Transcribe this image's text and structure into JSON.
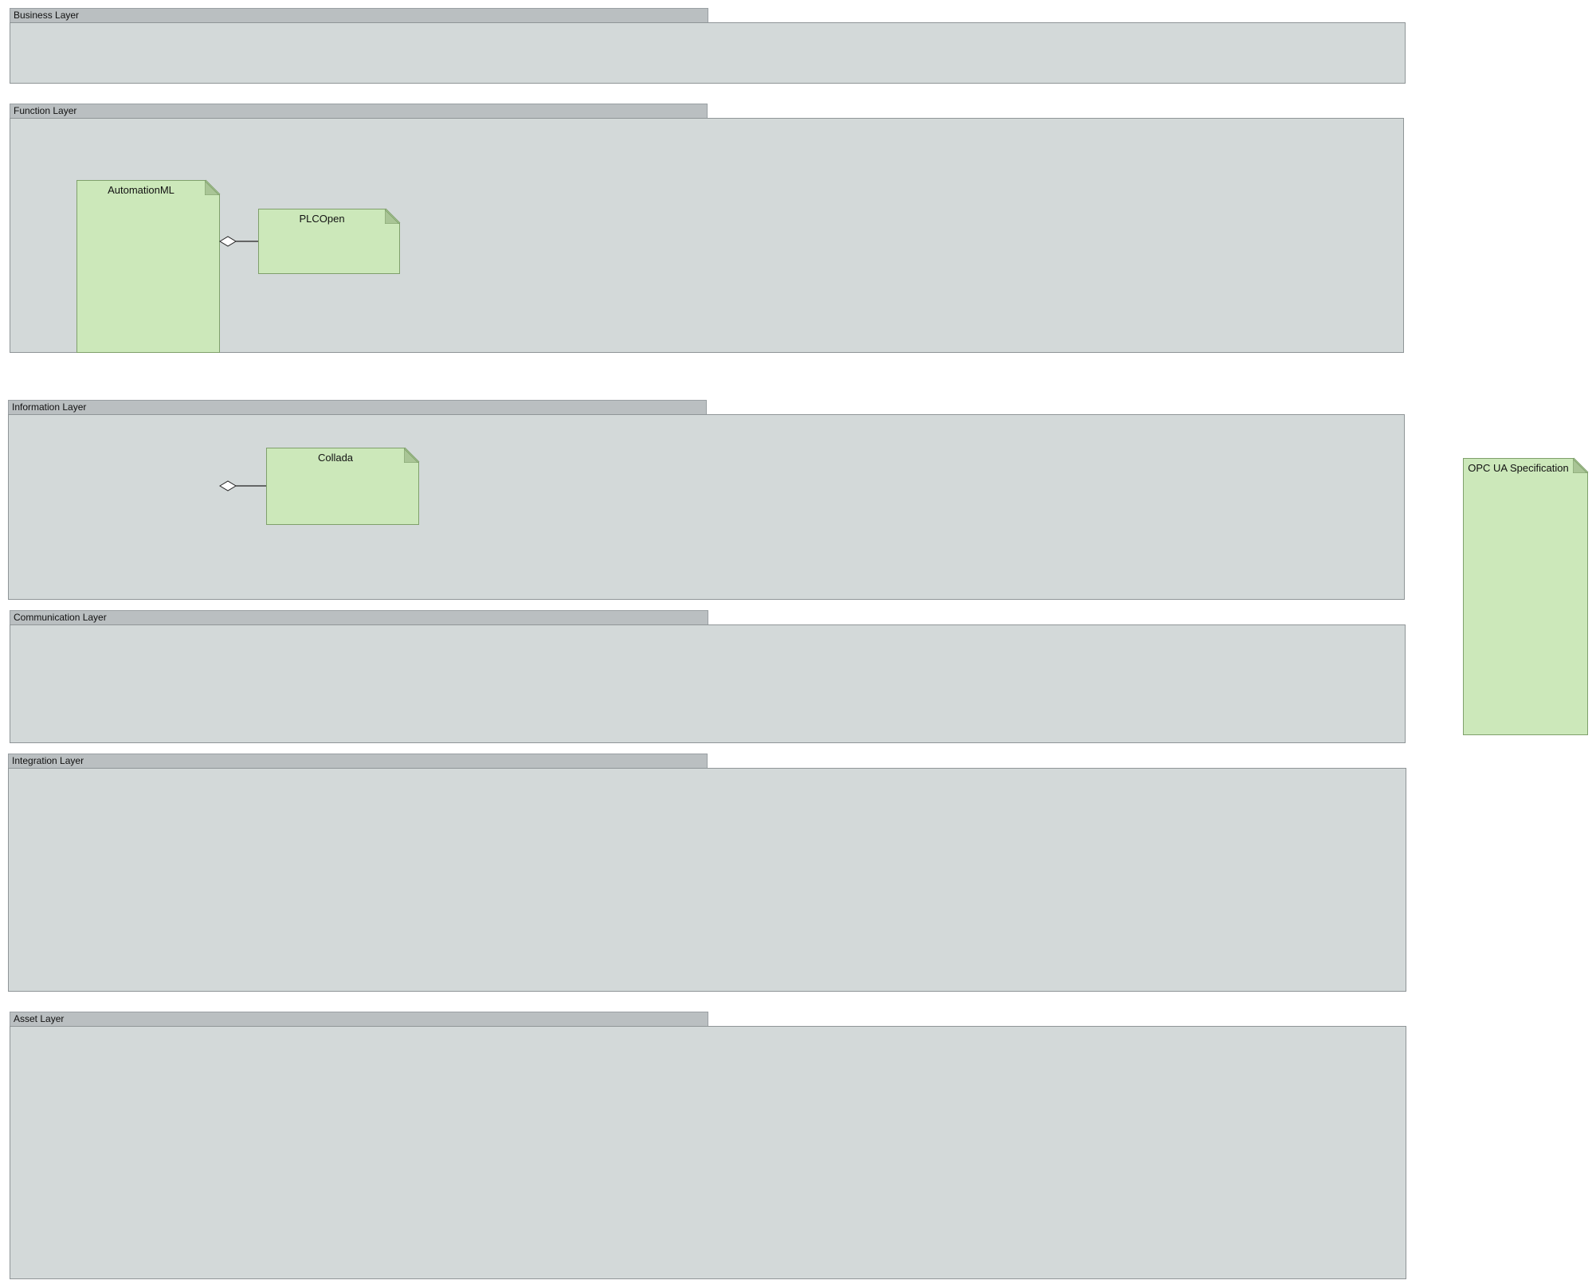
{
  "layers": {
    "business": "Business Layer",
    "function": "Function Layer",
    "information": "Information Layer",
    "communication": "Communication Layer",
    "integration": "Integration Layer",
    "asset": "Asset Layer"
  },
  "artifacts": {
    "automationml": "AutomationML",
    "plcopen": "PLCOpen",
    "collada": "Collada",
    "opcua": "OPC UA Specification"
  },
  "relations": [
    {
      "type": "aggregation",
      "whole": "AutomationML",
      "part": "PLCOpen"
    },
    {
      "type": "aggregation",
      "whole": "AutomationML",
      "part": "Collada"
    }
  ],
  "colors": {
    "layer_body": "#d3d9d9",
    "layer_tab": "#babfc1",
    "artifact_fill": "#cce8ba",
    "artifact_border": "#7fa06b"
  }
}
